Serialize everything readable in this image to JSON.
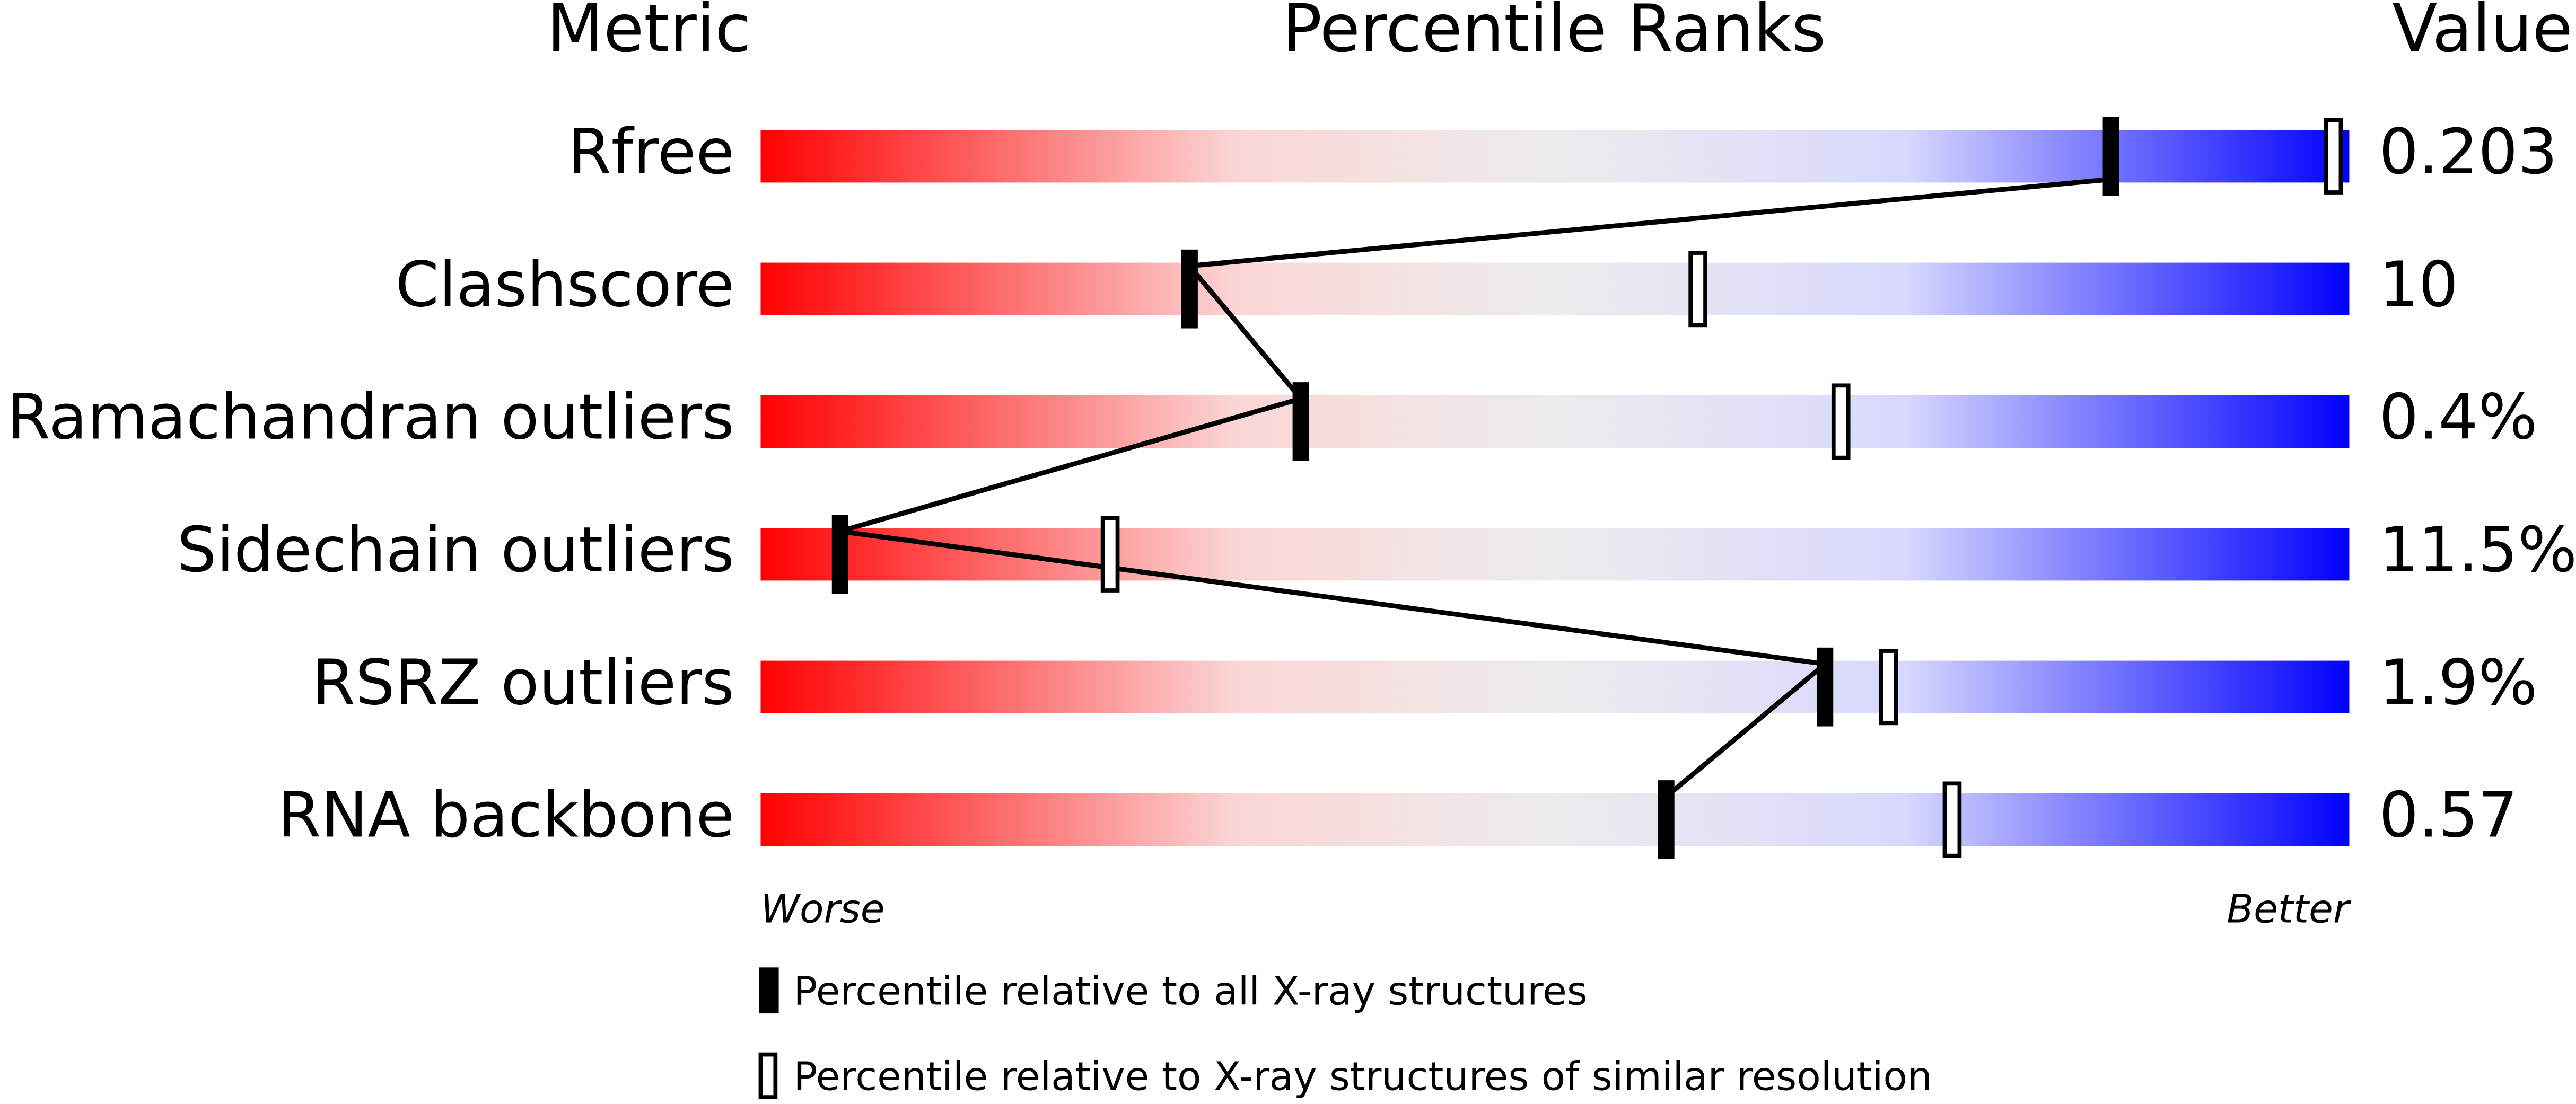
{
  "chart_data": {
    "type": "percentile",
    "headers": [
      "Metric",
      "Percentile Ranks",
      "Value"
    ],
    "categories": [
      "Rfree",
      "Clashscore",
      "Ramachandran outliers",
      "Sidechain outliers",
      "RSRZ outliers",
      "RNA backbone"
    ],
    "metric_values": [
      "0.203",
      "10",
      "0.4%",
      "11.5%",
      "1.9%",
      "0.57"
    ],
    "series": [
      {
        "name": "Percentile relative to all X-ray structures",
        "color": "#000000",
        "values": [
          85,
          27,
          34,
          5,
          67,
          57
        ]
      },
      {
        "name": "Percentile relative to X-ray structures of similar resolution",
        "color": "#000000",
        "values": [
          99,
          59,
          68,
          22,
          71,
          75
        ]
      }
    ],
    "xlim": [
      0,
      100
    ],
    "axis_labels": [
      "Worse",
      "Better"
    ]
  }
}
